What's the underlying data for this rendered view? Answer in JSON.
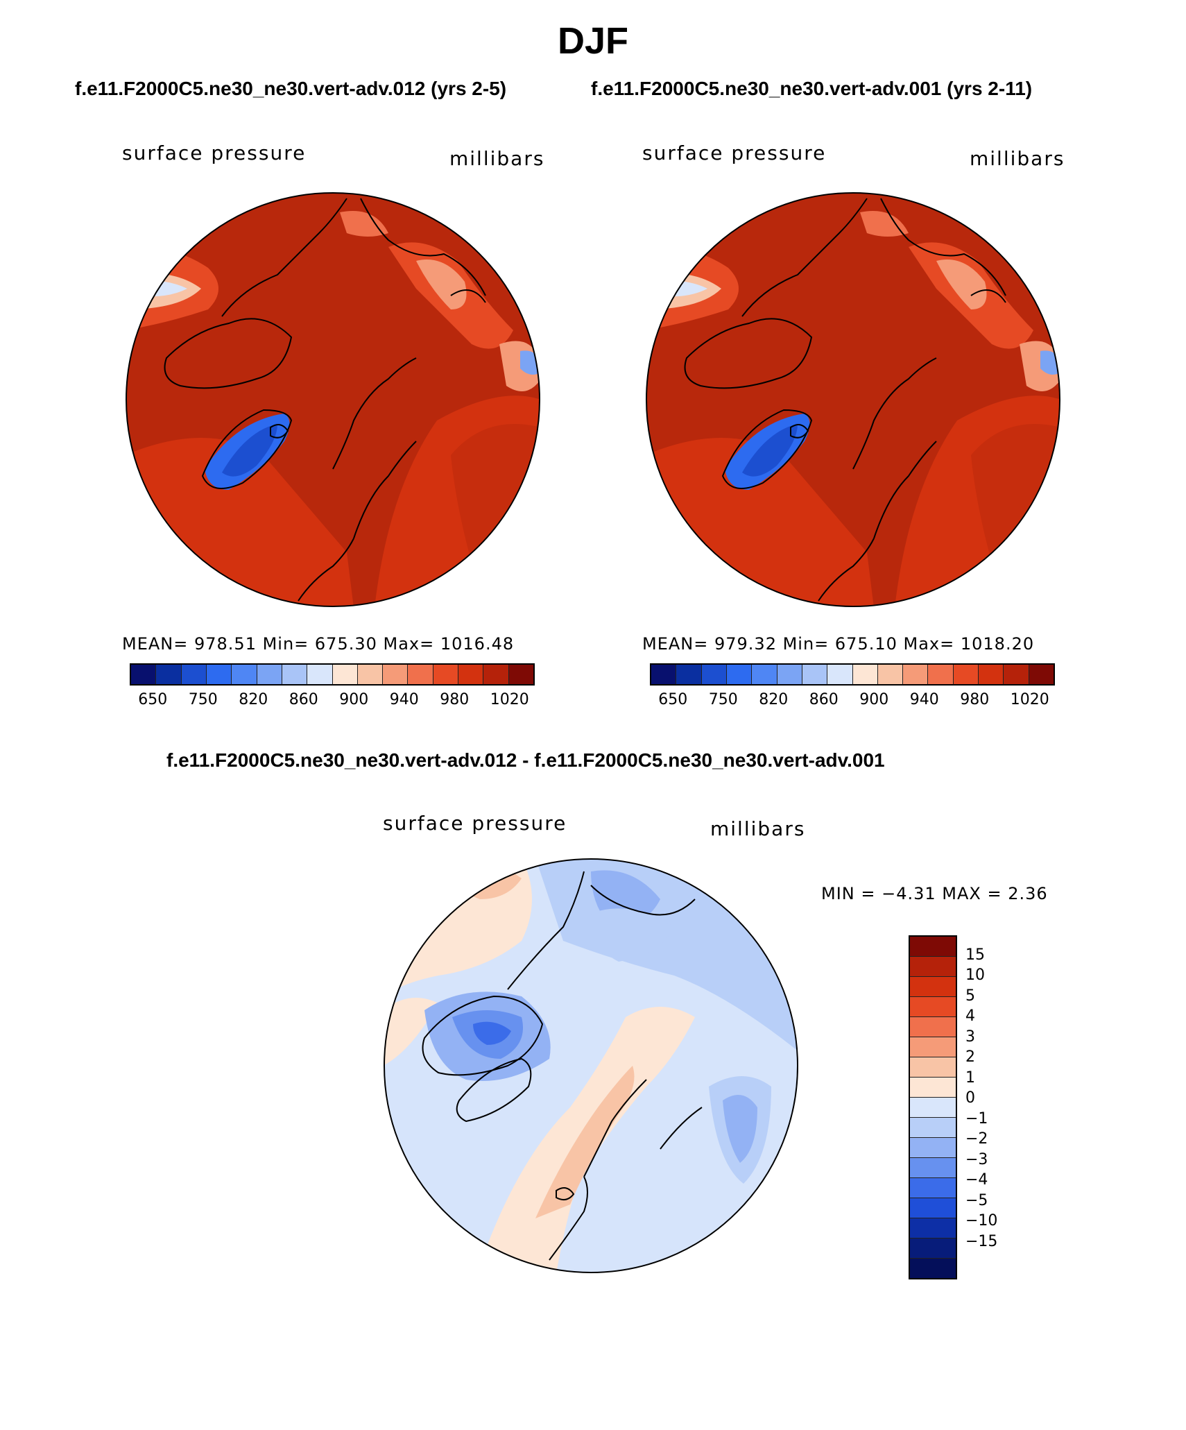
{
  "title": "DJF",
  "panels": [
    {
      "case": "f.e11.F2000C5.ne30_ne30.vert-adv.012 (yrs 2-5)",
      "variable": "surface pressure",
      "units": "millibars",
      "stats": "MEAN= 978.51   Min= 675.30   Max= 1016.48",
      "colorbar_labels": [
        "650",
        "750",
        "820",
        "860",
        "900",
        "940",
        "980",
        "1020"
      ]
    },
    {
      "case": "f.e11.F2000C5.ne30_ne30.vert-adv.001 (yrs 2-11)",
      "variable": "surface pressure",
      "units": "millibars",
      "stats": "MEAN= 979.32   Min= 675.10   Max= 1018.20",
      "colorbar_labels": [
        "650",
        "750",
        "820",
        "860",
        "900",
        "940",
        "980",
        "1020"
      ]
    }
  ],
  "diff": {
    "title": "f.e11.F2000C5.ne30_ne30.vert-adv.012 - f.e11.F2000C5.ne30_ne30.vert-adv.001",
    "variable": "surface pressure",
    "units": "millibars",
    "stats": "MIN =   −4.31  MAX =     2.36",
    "colorbar_labels": [
      "15",
      "10",
      "5",
      "4",
      "3",
      "2",
      "1",
      "0",
      "−1",
      "−2",
      "−3",
      "−4",
      "−5",
      "−10",
      "−15"
    ]
  },
  "colors": {
    "abs_scale": [
      "#08106e",
      "#0a2fa0",
      "#1c4fd0",
      "#2d6bf0",
      "#4f86f4",
      "#7ba4f4",
      "#a9c4f7",
      "#d9e6fb",
      "#fde6d5",
      "#f8c4a6",
      "#f59b78",
      "#f0704c",
      "#e64a24",
      "#d3320f",
      "#b5220a",
      "#7e0a05"
    ],
    "diff_scale": [
      "#7e0a05",
      "#b5220a",
      "#d3320f",
      "#e64a24",
      "#f0704c",
      "#f59b78",
      "#f8c4a6",
      "#fde6d5",
      "#d9e6fb",
      "#b8cff8",
      "#93b2f4",
      "#6791ef",
      "#3b6ce9",
      "#1f4fd8",
      "#0d2fa6",
      "#071c7a",
      "#040f5a"
    ],
    "map_background": "#b8280c",
    "diff_background": "#d6e4fb"
  }
}
